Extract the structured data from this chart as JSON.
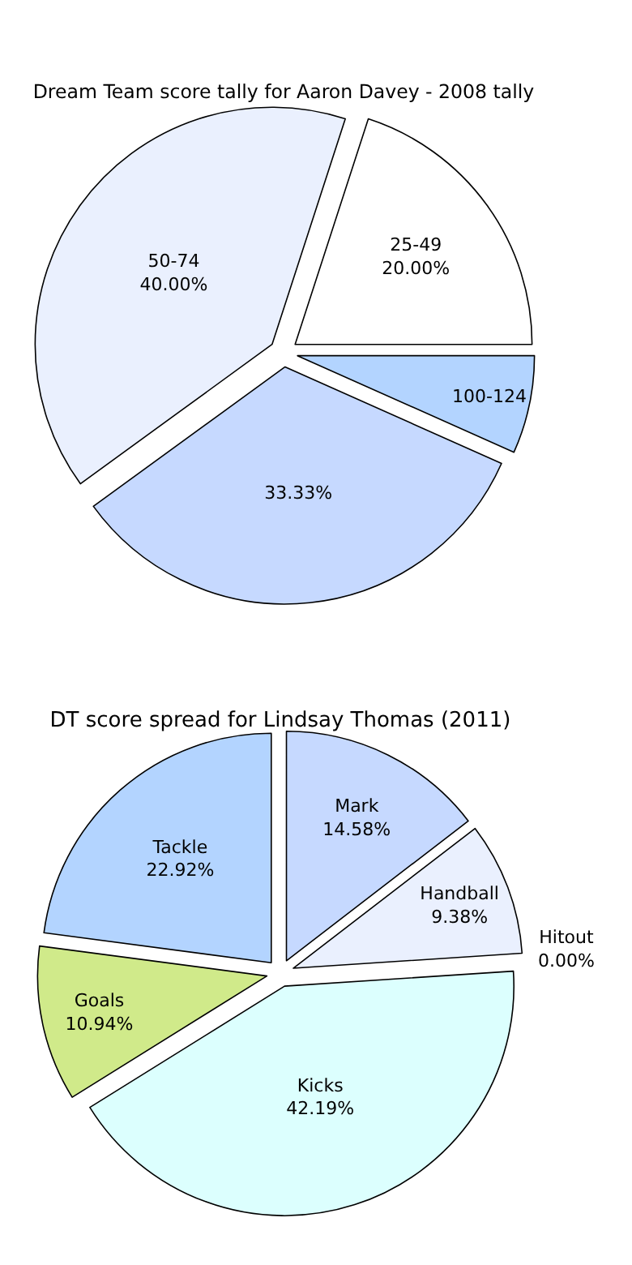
{
  "chart_data": [
    {
      "type": "pie",
      "title": "Dream Team score tally for Aaron Davey - 2008 tally",
      "categories": [
        "100-124",
        null,
        "50-74",
        "25-49"
      ],
      "values": [
        6.67,
        33.33,
        40,
        20
      ],
      "value_labels": [
        null,
        "33.33%",
        "40.00%",
        "20.00%"
      ],
      "colors": [
        "#b3d4ff",
        "#c6d9ff",
        "#eaf0fe",
        "#ffffff"
      ],
      "legend": false
    },
    {
      "type": "pie",
      "title": "DT score spread for Lindsay Thomas (2011)",
      "categories": [
        "Mark",
        "Handball",
        "Hitout",
        "Kicks",
        "Goals",
        "Tackle"
      ],
      "values": [
        14.58,
        9.38,
        0,
        42.19,
        10.94,
        22.92
      ],
      "value_labels": [
        "14.58%",
        "9.38%",
        "0.00%",
        "42.19%",
        "10.94%",
        "22.92%"
      ],
      "colors": [
        "#c6d9ff",
        "#eaf0fe",
        "#c0c0c0",
        "#dcfffe",
        "#d0ea8a",
        "#b3d4ff"
      ],
      "legend": false
    }
  ]
}
